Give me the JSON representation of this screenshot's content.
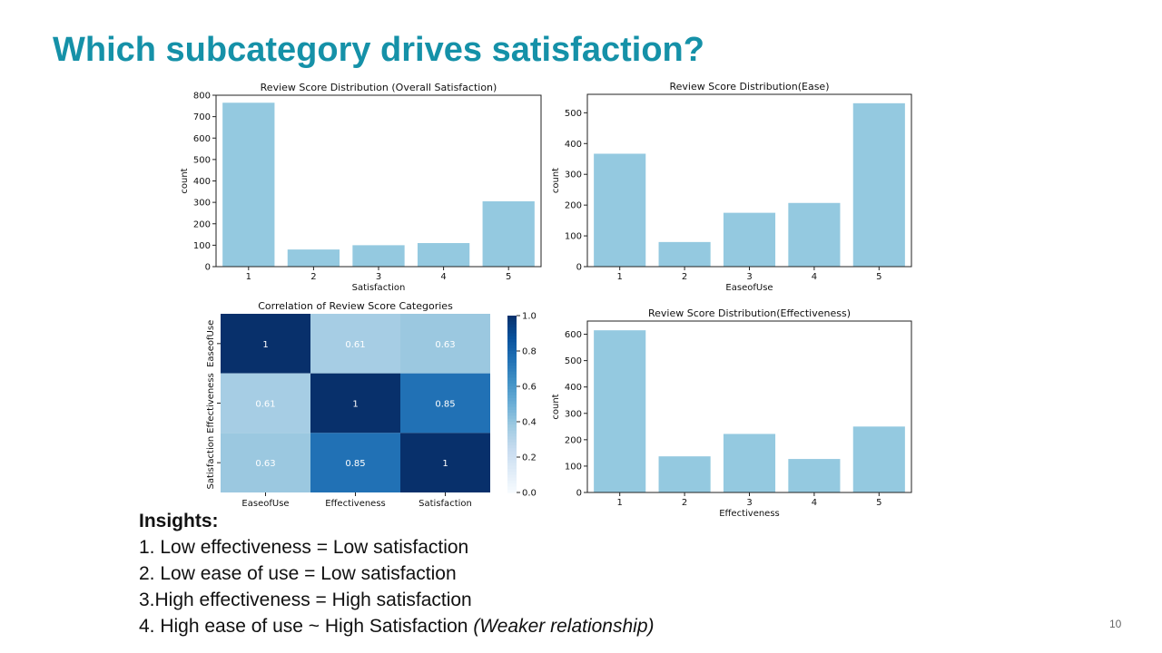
{
  "slide": {
    "title": "Which subcategory drives satisfaction?",
    "page_number": "10"
  },
  "insights": {
    "heading": "Insights:",
    "items": [
      {
        "text": "1. Low effectiveness = Low satisfaction",
        "note": ""
      },
      {
        "text": "2. Low ease of use = Low satisfaction",
        "note": ""
      },
      {
        "text": "3.High effectiveness = High satisfaction",
        "note": ""
      },
      {
        "text": "4. High ease of use ~ High Satisfaction ",
        "note": "(Weaker relationship)"
      }
    ]
  },
  "chart_data": [
    {
      "id": "satisfaction",
      "type": "bar",
      "title": "Review Score Distribution (Overall Satisfaction)",
      "xlabel": "Satisfaction",
      "ylabel": "count",
      "categories": [
        "1",
        "2",
        "3",
        "4",
        "5"
      ],
      "values": [
        765,
        80,
        100,
        110,
        305
      ],
      "ylim": [
        0,
        800
      ],
      "yticks": [
        0,
        100,
        200,
        300,
        400,
        500,
        600,
        700,
        800
      ],
      "color": "#94c9e0",
      "grid": false
    },
    {
      "id": "ease",
      "type": "bar",
      "title": "Review Score Distribution(Ease)",
      "xlabel": "EaseofUse",
      "ylabel": "count",
      "categories": [
        "1",
        "2",
        "3",
        "4",
        "5"
      ],
      "values": [
        367,
        80,
        175,
        207,
        531
      ],
      "ylim": [
        0,
        560
      ],
      "yticks": [
        0,
        100,
        200,
        300,
        400,
        500
      ],
      "color": "#94c9e0",
      "grid": false
    },
    {
      "id": "correlation",
      "type": "heatmap",
      "title": "Correlation of Review Score Categories",
      "rows": [
        "EaseofUse",
        "Effectiveness",
        "Satisfaction"
      ],
      "cols": [
        "EaseofUse",
        "Effectiveness",
        "Satisfaction"
      ],
      "values": [
        [
          1,
          0.61,
          0.63
        ],
        [
          0.61,
          1,
          0.85
        ],
        [
          0.63,
          0.85,
          1
        ]
      ],
      "labels": [
        [
          "1",
          "0.61",
          "0.63"
        ],
        [
          "0.61",
          "1",
          "0.85"
        ],
        [
          "0.63",
          "0.85",
          "1"
        ]
      ],
      "colorbar": {
        "range": [
          0,
          1
        ],
        "ticks": [
          "0.0",
          "0.2",
          "0.4",
          "0.6",
          "0.8",
          "1.0"
        ],
        "colormap": "Blues"
      }
    },
    {
      "id": "effectiveness",
      "type": "bar",
      "title": "Review Score Distribution(Effectiveness)",
      "xlabel": "Effectiveness",
      "ylabel": "count",
      "categories": [
        "1",
        "2",
        "3",
        "4",
        "5"
      ],
      "values": [
        615,
        137,
        222,
        127,
        250
      ],
      "ylim": [
        0,
        650
      ],
      "yticks": [
        0,
        100,
        200,
        300,
        400,
        500,
        600
      ],
      "color": "#94c9e0",
      "grid": false
    }
  ]
}
